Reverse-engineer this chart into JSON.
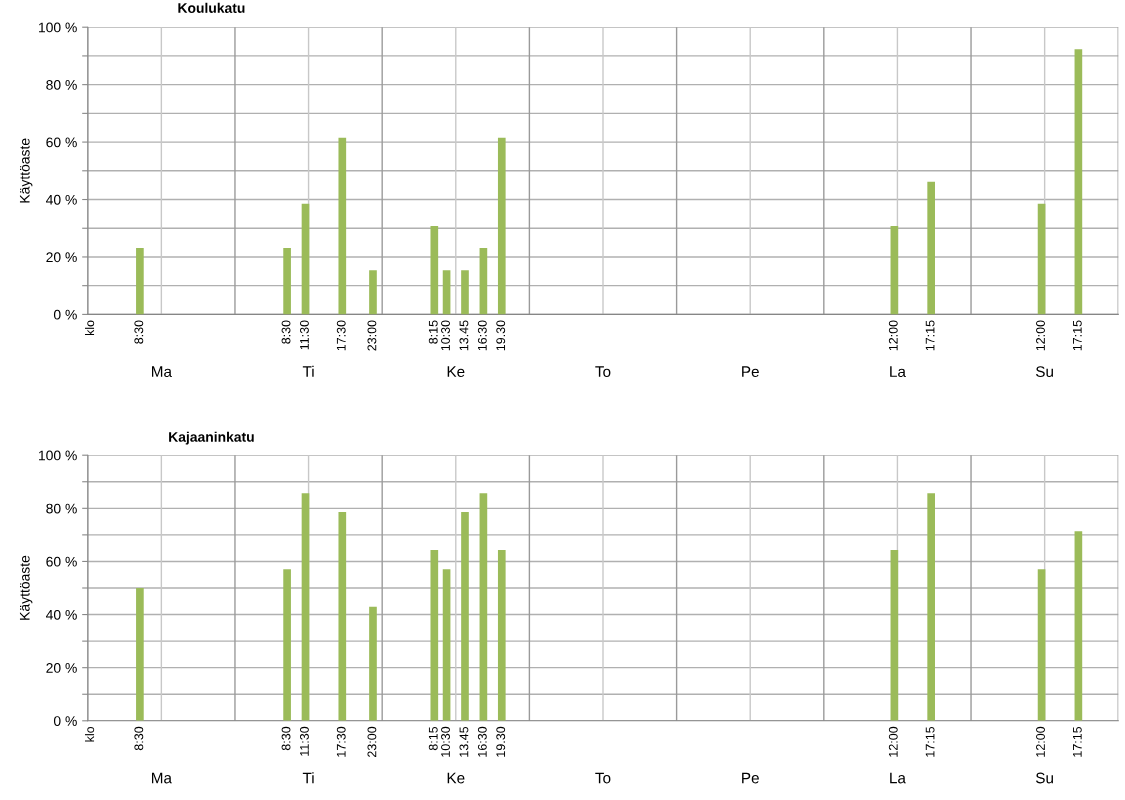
{
  "chart_data": [
    {
      "type": "bar",
      "title": "Koulukatu",
      "ylabel": "Käyttöaste",
      "color": "#9bbb59",
      "categories": [
        "klo",
        null,
        null,
        null,
        null,
        null,
        null,
        null,
        "8:30",
        null,
        null,
        null,
        null,
        null,
        null,
        null,
        null,
        null,
        null,
        null,
        null,
        null,
        null,
        null,
        null,
        null,
        null,
        null,
        null,
        null,
        null,
        null,
        "8:30",
        null,
        null,
        "11:30",
        null,
        null,
        null,
        null,
        null,
        "17:30",
        null,
        null,
        null,
        null,
        "23:00",
        null,
        null,
        null,
        null,
        null,
        null,
        null,
        null,
        null,
        "8:15",
        null,
        "10:30",
        null,
        null,
        "13.45",
        null,
        null,
        "16:30",
        null,
        null,
        "19.30",
        null,
        null,
        null,
        null,
        null,
        null,
        null,
        null,
        null,
        null,
        null,
        null,
        null,
        null,
        null,
        null,
        null,
        null,
        null,
        null,
        null,
        null,
        null,
        null,
        null,
        null,
        null,
        null,
        null,
        null,
        null,
        null,
        null,
        null,
        null,
        null,
        null,
        null,
        null,
        null,
        null,
        null,
        null,
        null,
        null,
        null,
        null,
        null,
        null,
        null,
        null,
        null,
        null,
        null,
        null,
        null,
        null,
        null,
        null,
        null,
        null,
        null,
        null,
        "12:00",
        null,
        null,
        null,
        null,
        null,
        "17:15",
        null,
        null,
        null,
        null,
        null,
        null,
        null,
        null,
        null,
        null,
        null,
        null,
        null,
        null,
        null,
        null,
        null,
        "12:00",
        null,
        null,
        null,
        null,
        null,
        "17:15",
        null,
        null,
        null,
        null,
        null,
        null
      ],
      "values": [
        null,
        null,
        null,
        null,
        null,
        null,
        null,
        null,
        23.1,
        null,
        null,
        null,
        null,
        null,
        null,
        null,
        null,
        null,
        null,
        null,
        null,
        null,
        null,
        null,
        null,
        null,
        null,
        null,
        null,
        null,
        null,
        null,
        23.1,
        null,
        null,
        38.5,
        null,
        null,
        null,
        null,
        null,
        61.5,
        null,
        null,
        null,
        null,
        15.4,
        null,
        null,
        null,
        null,
        null,
        null,
        null,
        null,
        null,
        30.8,
        null,
        15.4,
        null,
        null,
        15.4,
        null,
        null,
        23.1,
        null,
        null,
        61.5,
        null,
        null,
        null,
        null,
        null,
        null,
        null,
        null,
        null,
        null,
        null,
        null,
        null,
        null,
        null,
        null,
        null,
        null,
        null,
        null,
        null,
        null,
        null,
        null,
        null,
        null,
        null,
        null,
        null,
        null,
        null,
        null,
        null,
        null,
        null,
        null,
        null,
        null,
        null,
        null,
        null,
        null,
        null,
        null,
        null,
        null,
        null,
        null,
        null,
        null,
        null,
        null,
        null,
        null,
        null,
        null,
        null,
        null,
        null,
        null,
        null,
        null,
        null,
        30.8,
        null,
        null,
        null,
        null,
        null,
        46.2,
        null,
        null,
        null,
        null,
        null,
        null,
        null,
        null,
        null,
        null,
        null,
        null,
        null,
        null,
        null,
        null,
        null,
        38.5,
        null,
        null,
        null,
        null,
        null,
        92.3,
        null,
        null,
        null,
        null,
        null,
        null
      ],
      "annotations": [
        "Ma",
        "Ti",
        "Ke",
        "To",
        "Pe",
        "La",
        "Su"
      ],
      "ylim": [
        0,
        100
      ],
      "yticks": [
        {
          "value": 0,
          "label": "0 %"
        },
        {
          "value": 10,
          "label": null
        },
        {
          "value": 20,
          "label": "20 %"
        },
        {
          "value": 30,
          "label": null
        },
        {
          "value": 40,
          "label": "40 %"
        },
        {
          "value": 50,
          "label": null
        },
        {
          "value": 60,
          "label": "60 %"
        },
        {
          "value": 70,
          "label": null
        },
        {
          "value": 80,
          "label": "80 %"
        },
        {
          "value": 90,
          "label": null
        },
        {
          "value": 100,
          "label": "100 %"
        }
      ],
      "grid": true
    },
    {
      "type": "bar",
      "title": "Kajaaninkatu",
      "ylabel": "Käyttöaste",
      "color": "#9bbb59",
      "categories": [
        "klo",
        null,
        null,
        null,
        null,
        null,
        null,
        null,
        "8:30",
        null,
        null,
        null,
        null,
        null,
        null,
        null,
        null,
        null,
        null,
        null,
        null,
        null,
        null,
        null,
        null,
        null,
        null,
        null,
        null,
        null,
        null,
        null,
        "8:30",
        null,
        null,
        "11:30",
        null,
        null,
        null,
        null,
        null,
        "17:30",
        null,
        null,
        null,
        null,
        "23:00",
        null,
        null,
        null,
        null,
        null,
        null,
        null,
        null,
        null,
        "8:15",
        null,
        "10:30",
        null,
        null,
        "13.45",
        null,
        null,
        "16:30",
        null,
        null,
        "19.30",
        null,
        null,
        null,
        null,
        null,
        null,
        null,
        null,
        null,
        null,
        null,
        null,
        null,
        null,
        null,
        null,
        null,
        null,
        null,
        null,
        null,
        null,
        null,
        null,
        null,
        null,
        null,
        null,
        null,
        null,
        null,
        null,
        null,
        null,
        null,
        null,
        null,
        null,
        null,
        null,
        null,
        null,
        null,
        null,
        null,
        null,
        null,
        null,
        null,
        null,
        null,
        null,
        null,
        null,
        null,
        null,
        null,
        null,
        null,
        null,
        null,
        null,
        null,
        "12:00",
        null,
        null,
        null,
        null,
        null,
        "17:15",
        null,
        null,
        null,
        null,
        null,
        null,
        null,
        null,
        null,
        null,
        null,
        null,
        null,
        null,
        null,
        null,
        null,
        "12:00",
        null,
        null,
        null,
        null,
        null,
        "17:15",
        null,
        null,
        null,
        null,
        null,
        null
      ],
      "values": [
        null,
        null,
        null,
        null,
        null,
        null,
        null,
        null,
        50,
        null,
        null,
        null,
        null,
        null,
        null,
        null,
        null,
        null,
        null,
        null,
        null,
        null,
        null,
        null,
        null,
        null,
        null,
        null,
        null,
        null,
        null,
        null,
        57.1,
        null,
        null,
        85.7,
        null,
        null,
        null,
        null,
        null,
        78.6,
        null,
        null,
        null,
        null,
        42.9,
        null,
        null,
        null,
        null,
        null,
        null,
        null,
        null,
        null,
        64.3,
        null,
        57.1,
        null,
        null,
        78.6,
        null,
        null,
        85.7,
        null,
        null,
        64.3,
        null,
        null,
        null,
        null,
        null,
        null,
        null,
        null,
        null,
        null,
        null,
        null,
        null,
        null,
        null,
        null,
        null,
        null,
        null,
        null,
        null,
        null,
        null,
        null,
        null,
        null,
        null,
        null,
        null,
        null,
        null,
        null,
        null,
        null,
        null,
        null,
        null,
        null,
        null,
        null,
        null,
        null,
        null,
        null,
        null,
        null,
        null,
        null,
        null,
        null,
        null,
        null,
        null,
        null,
        null,
        null,
        null,
        null,
        null,
        null,
        null,
        null,
        null,
        64.3,
        null,
        null,
        null,
        null,
        null,
        85.7,
        null,
        null,
        null,
        null,
        null,
        null,
        null,
        null,
        null,
        null,
        null,
        null,
        null,
        null,
        null,
        null,
        null,
        57.1,
        null,
        null,
        null,
        null,
        null,
        71.4,
        null,
        null,
        null,
        null,
        null,
        null
      ],
      "annotations": [
        "Ma",
        "Ti",
        "Ke",
        "To",
        "Pe",
        "La",
        "Su"
      ],
      "ylim": [
        0,
        100
      ],
      "yticks": [
        {
          "value": 0,
          "label": "0 %"
        },
        {
          "value": 10,
          "label": null
        },
        {
          "value": 20,
          "label": "20 %"
        },
        {
          "value": 30,
          "label": null
        },
        {
          "value": 40,
          "label": "40 %"
        },
        {
          "value": 50,
          "label": null
        },
        {
          "value": 60,
          "label": "60 %"
        },
        {
          "value": 70,
          "label": null
        },
        {
          "value": 80,
          "label": "80 %"
        },
        {
          "value": 90,
          "label": null
        },
        {
          "value": 100,
          "label": "100 %"
        }
      ],
      "grid": true
    }
  ]
}
